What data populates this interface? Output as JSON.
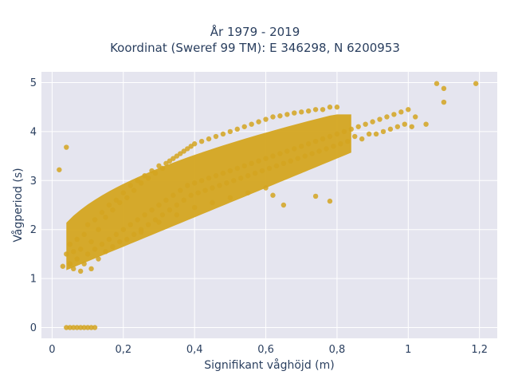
{
  "chart_data": {
    "type": "scatter",
    "title_line1": "År 1979 - 2019",
    "title_line2": "Koordinat (Sweref 99 TM): E 346298, N 6200953",
    "xlabel": "Signifikant våghöjd (m)",
    "ylabel": "Vågperiod (s)",
    "xlim": [
      -0.03,
      1.25
    ],
    "ylim": [
      -0.22,
      5.22
    ],
    "xticks": [
      0,
      0.2,
      0.4,
      0.6,
      0.8,
      1,
      1.2
    ],
    "xtick_labels": [
      "0",
      "0,2",
      "0,4",
      "0,6",
      "0,8",
      "1",
      "1,2"
    ],
    "yticks": [
      0,
      1,
      2,
      3,
      4,
      5
    ],
    "ytick_labels": [
      "0",
      "1",
      "2",
      "3",
      "4",
      "5"
    ],
    "grid": true,
    "legend": "none",
    "point_color": "#d4a520",
    "plot_background": "#e5e5ef",
    "series": [
      {
        "points": [
          [
            0.03,
            1.25
          ],
          [
            0.04,
            1.5
          ],
          [
            0.05,
            1.3
          ],
          [
            0.05,
            1.7
          ],
          [
            0.06,
            1.2
          ],
          [
            0.06,
            1.55
          ],
          [
            0.07,
            1.4
          ],
          [
            0.07,
            1.8
          ],
          [
            0.08,
            1.15
          ],
          [
            0.08,
            1.6
          ],
          [
            0.09,
            1.3
          ],
          [
            0.09,
            1.9
          ],
          [
            0.1,
            1.5
          ],
          [
            0.1,
            2.1
          ],
          [
            0.11,
            1.2
          ],
          [
            0.11,
            1.75
          ],
          [
            0.12,
            1.6
          ],
          [
            0.12,
            2.2
          ],
          [
            0.13,
            1.4
          ],
          [
            0.13,
            2.0
          ],
          [
            0.14,
            1.7
          ],
          [
            0.14,
            2.35
          ],
          [
            0.15,
            1.55
          ],
          [
            0.15,
            2.25
          ],
          [
            0.16,
            1.8
          ],
          [
            0.16,
            2.5
          ],
          [
            0.17,
            1.65
          ],
          [
            0.17,
            2.4
          ],
          [
            0.18,
            1.9
          ],
          [
            0.18,
            2.6
          ],
          [
            0.19,
            1.75
          ],
          [
            0.19,
            2.55
          ],
          [
            0.2,
            2.0
          ],
          [
            0.2,
            2.75
          ],
          [
            0.21,
            1.8
          ],
          [
            0.21,
            2.65
          ],
          [
            0.22,
            2.1
          ],
          [
            0.22,
            2.9
          ],
          [
            0.23,
            1.9
          ],
          [
            0.23,
            2.8
          ],
          [
            0.24,
            2.2
          ],
          [
            0.24,
            3.0
          ],
          [
            0.25,
            2.0
          ],
          [
            0.25,
            2.95
          ],
          [
            0.26,
            2.3
          ],
          [
            0.26,
            3.1
          ],
          [
            0.27,
            2.1
          ],
          [
            0.27,
            3.05
          ],
          [
            0.28,
            2.4
          ],
          [
            0.28,
            3.2
          ],
          [
            0.29,
            2.2
          ],
          [
            0.29,
            3.15
          ],
          [
            0.3,
            2.5
          ],
          [
            0.3,
            3.3
          ],
          [
            0.31,
            2.3
          ],
          [
            0.31,
            3.25
          ],
          [
            0.32,
            2.6
          ],
          [
            0.32,
            3.35
          ],
          [
            0.33,
            2.4
          ],
          [
            0.33,
            3.4
          ],
          [
            0.34,
            2.7
          ],
          [
            0.34,
            3.45
          ],
          [
            0.35,
            2.5
          ],
          [
            0.35,
            3.5
          ],
          [
            0.36,
            2.8
          ],
          [
            0.36,
            3.55
          ],
          [
            0.37,
            2.6
          ],
          [
            0.37,
            3.6
          ],
          [
            0.38,
            2.9
          ],
          [
            0.38,
            3.65
          ],
          [
            0.39,
            2.7
          ],
          [
            0.39,
            3.7
          ],
          [
            0.4,
            2.95
          ],
          [
            0.4,
            3.75
          ],
          [
            0.41,
            2.75
          ],
          [
            0.42,
            3.0
          ],
          [
            0.42,
            3.8
          ],
          [
            0.43,
            2.8
          ],
          [
            0.44,
            3.05
          ],
          [
            0.44,
            3.85
          ],
          [
            0.45,
            2.85
          ],
          [
            0.46,
            3.1
          ],
          [
            0.46,
            3.9
          ],
          [
            0.47,
            2.9
          ],
          [
            0.48,
            3.15
          ],
          [
            0.48,
            3.95
          ],
          [
            0.49,
            2.95
          ],
          [
            0.5,
            3.2
          ],
          [
            0.5,
            4.0
          ],
          [
            0.51,
            3.0
          ],
          [
            0.52,
            3.25
          ],
          [
            0.52,
            4.05
          ],
          [
            0.53,
            3.05
          ],
          [
            0.54,
            3.3
          ],
          [
            0.54,
            4.1
          ],
          [
            0.55,
            3.1
          ],
          [
            0.56,
            3.35
          ],
          [
            0.56,
            4.15
          ],
          [
            0.57,
            3.15
          ],
          [
            0.58,
            3.4
          ],
          [
            0.58,
            4.2
          ],
          [
            0.59,
            3.2
          ],
          [
            0.6,
            3.45
          ],
          [
            0.6,
            4.25
          ],
          [
            0.61,
            3.25
          ],
          [
            0.62,
            3.5
          ],
          [
            0.62,
            4.3
          ],
          [
            0.63,
            3.3
          ],
          [
            0.64,
            3.55
          ],
          [
            0.64,
            4.32
          ],
          [
            0.65,
            3.35
          ],
          [
            0.66,
            3.6
          ],
          [
            0.66,
            4.35
          ],
          [
            0.67,
            3.4
          ],
          [
            0.68,
            3.65
          ],
          [
            0.68,
            4.38
          ],
          [
            0.69,
            3.45
          ],
          [
            0.7,
            3.7
          ],
          [
            0.7,
            4.4
          ],
          [
            0.71,
            3.5
          ],
          [
            0.72,
            3.75
          ],
          [
            0.72,
            4.42
          ],
          [
            0.73,
            3.55
          ],
          [
            0.74,
            3.8
          ],
          [
            0.74,
            4.45
          ],
          [
            0.75,
            3.6
          ],
          [
            0.76,
            3.85
          ],
          [
            0.76,
            4.45
          ],
          [
            0.77,
            3.65
          ],
          [
            0.78,
            3.9
          ],
          [
            0.78,
            4.5
          ],
          [
            0.79,
            3.7
          ],
          [
            0.8,
            3.95
          ],
          [
            0.8,
            4.5
          ],
          [
            0.81,
            3.75
          ],
          [
            0.82,
            4.0
          ],
          [
            0.83,
            3.8
          ],
          [
            0.84,
            4.05
          ],
          [
            0.85,
            3.9
          ],
          [
            0.86,
            4.1
          ],
          [
            0.87,
            3.85
          ],
          [
            0.88,
            4.15
          ],
          [
            0.89,
            3.95
          ],
          [
            0.9,
            4.2
          ],
          [
            0.91,
            3.95
          ],
          [
            0.92,
            4.25
          ],
          [
            0.93,
            4.0
          ],
          [
            0.94,
            4.3
          ],
          [
            0.95,
            4.05
          ],
          [
            0.96,
            4.35
          ],
          [
            0.97,
            4.1
          ],
          [
            0.98,
            4.4
          ],
          [
            0.99,
            4.15
          ],
          [
            1.0,
            4.45
          ],
          [
            1.01,
            4.1
          ],
          [
            1.02,
            4.3
          ],
          [
            1.05,
            4.15
          ],
          [
            1.08,
            4.98
          ],
          [
            1.1,
            4.88
          ],
          [
            1.1,
            4.6
          ],
          [
            1.19,
            4.98
          ],
          [
            0.02,
            3.22
          ],
          [
            0.04,
            3.68
          ],
          [
            0.78,
            2.58
          ],
          [
            0.74,
            2.68
          ],
          [
            0.25,
            1.95
          ],
          [
            0.3,
            2.15
          ],
          [
            0.35,
            2.3
          ],
          [
            0.4,
            2.45
          ],
          [
            0.45,
            2.55
          ],
          [
            0.5,
            2.65
          ],
          [
            0.55,
            2.75
          ],
          [
            0.6,
            2.85
          ],
          [
            0.62,
            2.7
          ],
          [
            0.65,
            2.5
          ],
          [
            0.04,
            0
          ],
          [
            0.05,
            0
          ],
          [
            0.06,
            0
          ],
          [
            0.07,
            0
          ],
          [
            0.08,
            0
          ],
          [
            0.09,
            0
          ],
          [
            0.1,
            0
          ],
          [
            0.11,
            0
          ],
          [
            0.12,
            0
          ]
        ]
      }
    ]
  }
}
